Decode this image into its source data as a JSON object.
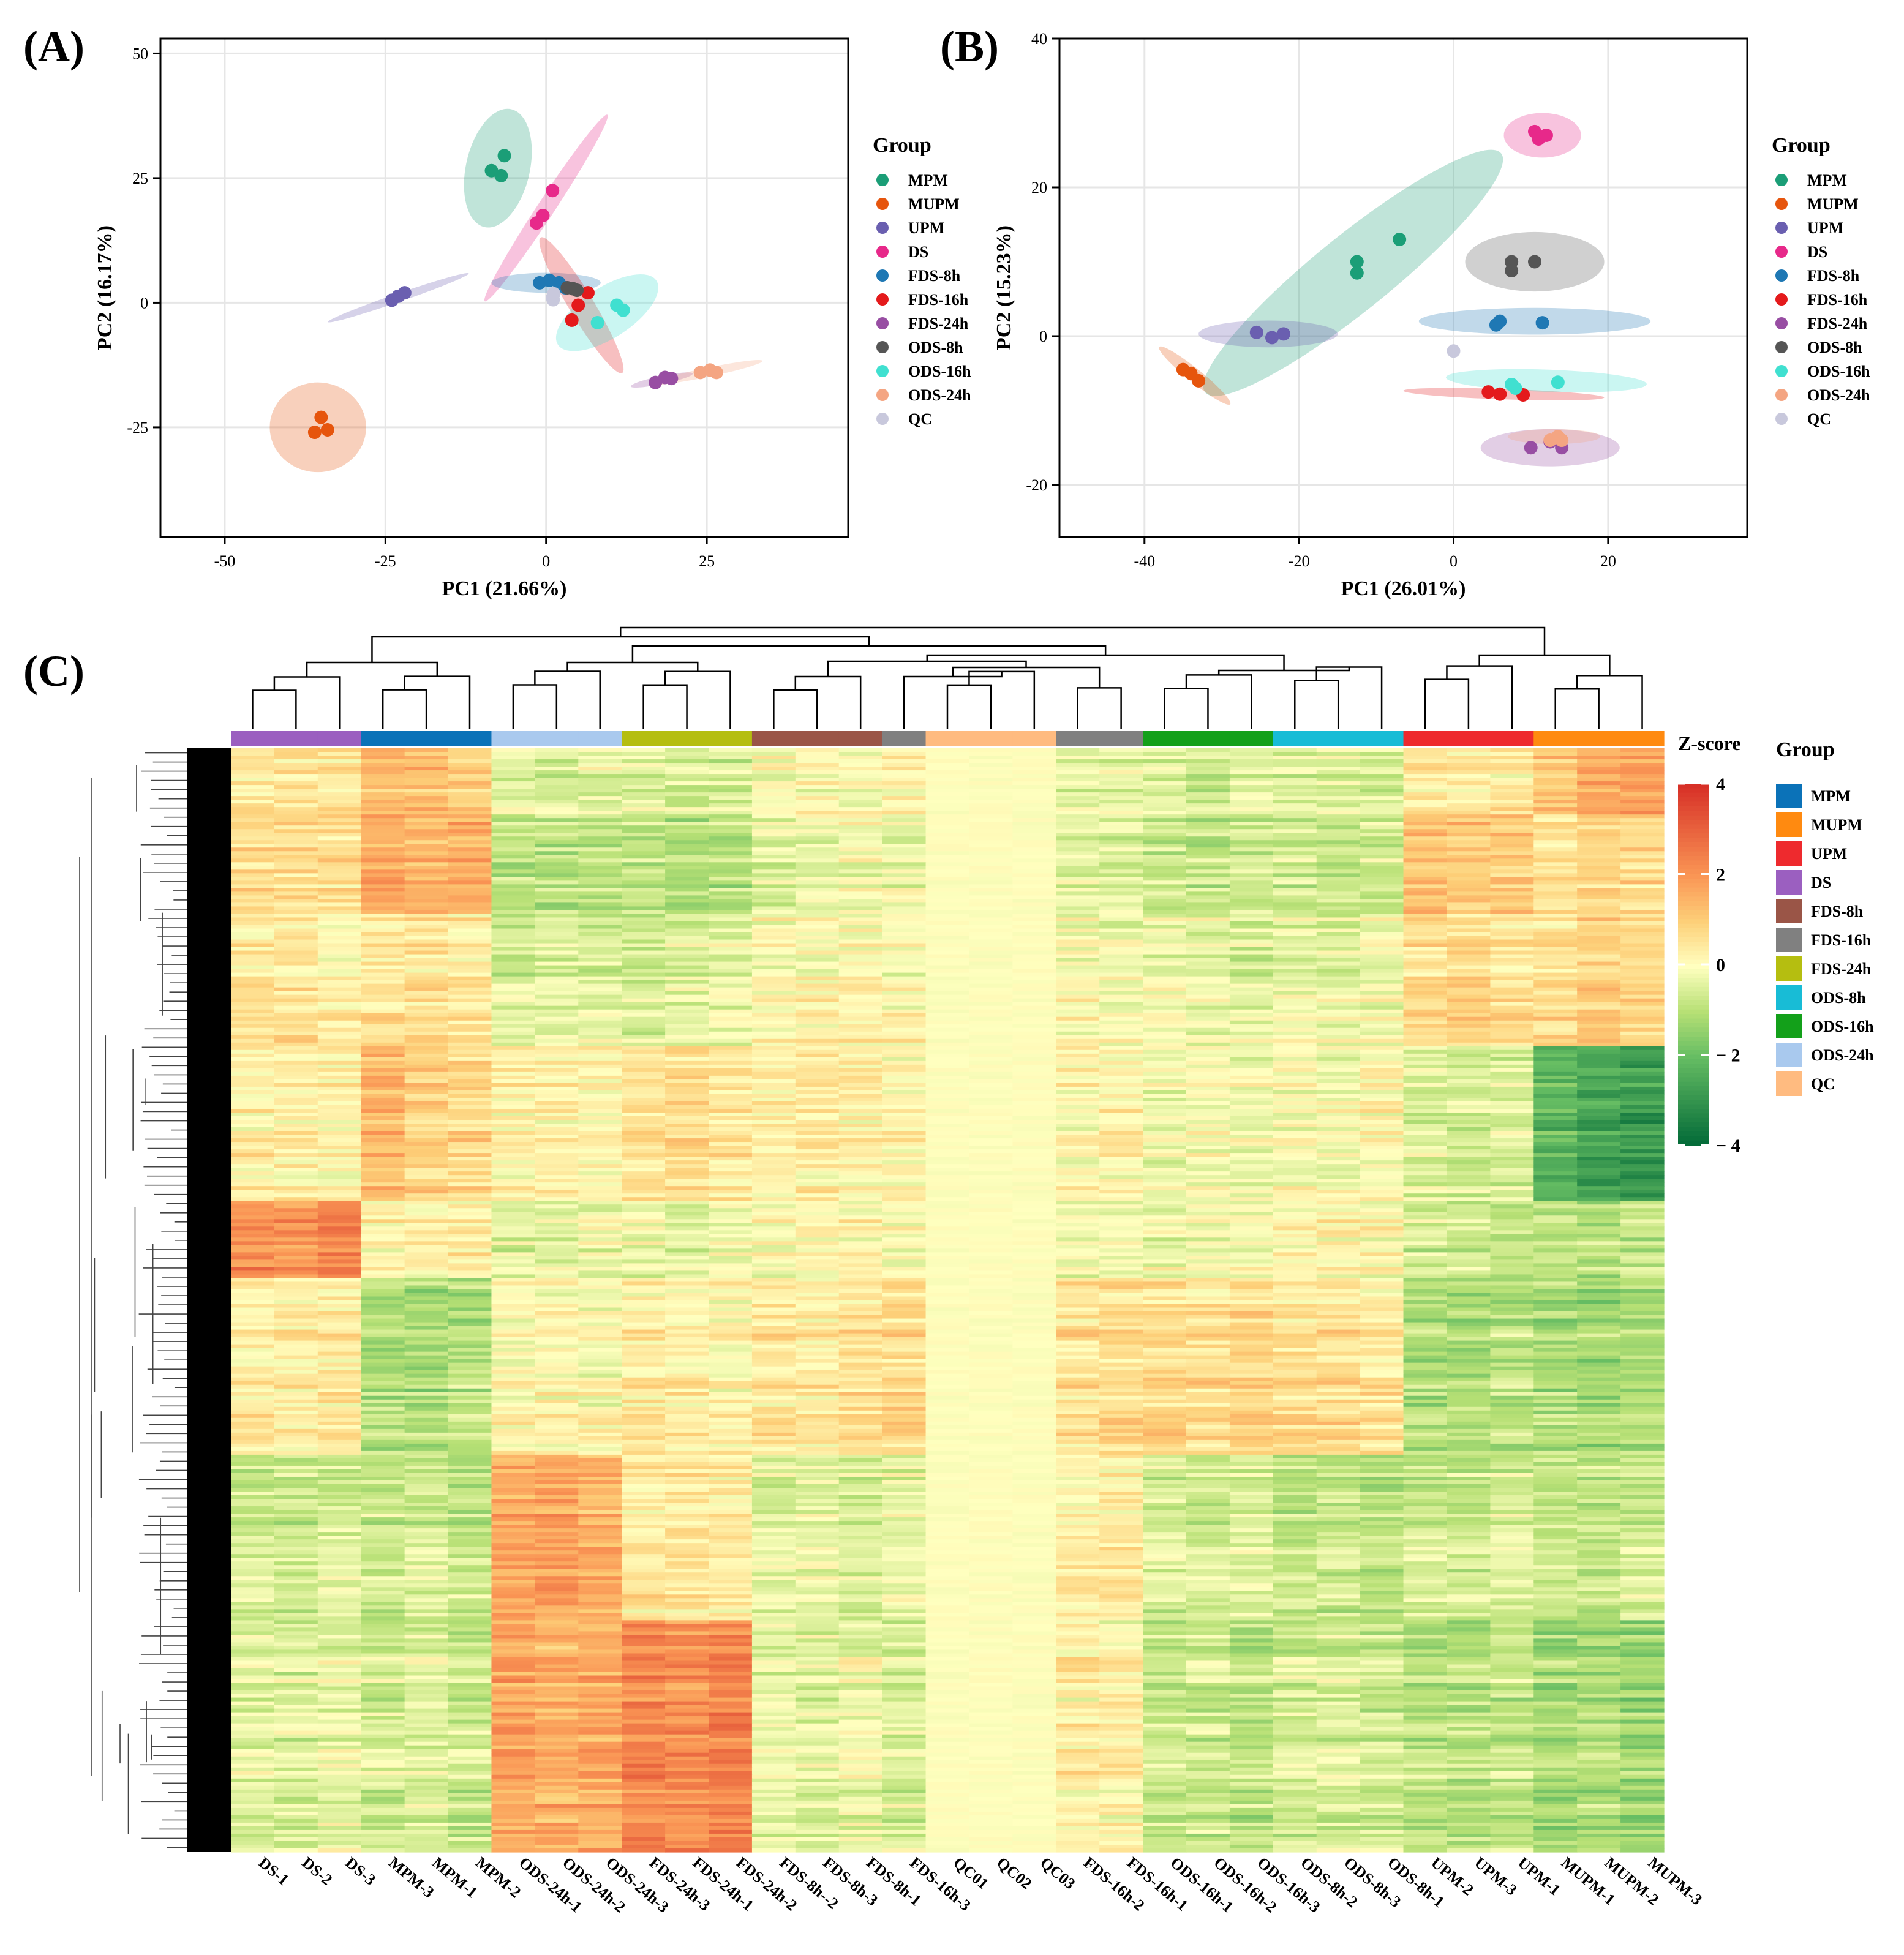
{
  "panels": {
    "a_label": "(A)",
    "b_label": "(B)",
    "c_label": "(C)"
  },
  "colors": {
    "MPM": "#1b9e77",
    "MUPM": "#e6550d",
    "UPM": "#6a5fb0",
    "DS": "#e7298a",
    "FDS-8h": "#1f78b4",
    "FDS-16h": "#e41a1c",
    "FDS-24h": "#984ea3",
    "ODS-8h": "#555555",
    "ODS-16h": "#40e0d0",
    "ODS-24h": "#f4a582",
    "QC": "#c8c8dc"
  },
  "chart_data": [
    {
      "type": "scatter",
      "panel": "A",
      "xlabel": "PC1 (21.66%)",
      "ylabel": "PC2 (16.17%)",
      "xlim": [
        -60,
        47
      ],
      "ylim": [
        -47,
        53
      ],
      "xticks": [
        -50,
        -25,
        0,
        25
      ],
      "yticks": [
        -25,
        0,
        25,
        50
      ],
      "legend_title": "Group",
      "legend_position": "right",
      "grid": true,
      "series": [
        {
          "name": "MPM",
          "points": [
            [
              -8.5,
              26.5
            ],
            [
              -6.5,
              29.5
            ],
            [
              -7,
              25.5
            ]
          ],
          "ellipse": {
            "cx": -7.5,
            "cy": 27,
            "rx": 12,
            "ry": 5,
            "angle": 80
          }
        },
        {
          "name": "MUPM",
          "points": [
            [
              -36,
              -26
            ],
            [
              -35,
              -23
            ],
            [
              -34,
              -25.5
            ]
          ],
          "ellipse": {
            "cx": -35.5,
            "cy": -25,
            "rx": 7.5,
            "ry": 9,
            "angle": 0
          }
        },
        {
          "name": "UPM",
          "points": [
            [
              -24,
              0.5
            ],
            [
              -23,
              1.3
            ],
            [
              -22,
              2
            ]
          ],
          "ellipse": {
            "cx": -23,
            "cy": 1,
            "rx": 12,
            "ry": 0.8,
            "angle": 24
          }
        },
        {
          "name": "DS",
          "points": [
            [
              -1.5,
              16
            ],
            [
              -0.5,
              17.5
            ],
            [
              1,
              22.5
            ]
          ],
          "ellipse": {
            "cx": 0,
            "cy": 19,
            "rx": 21,
            "ry": 1.4,
            "angle": 63
          }
        },
        {
          "name": "FDS-8h",
          "points": [
            [
              -1,
              4
            ],
            [
              0.5,
              4.5
            ],
            [
              2,
              4
            ],
            [
              3,
              3
            ]
          ],
          "ellipse": {
            "cx": 0,
            "cy": 4,
            "rx": 8.5,
            "ry": 2,
            "angle": 0
          }
        },
        {
          "name": "FDS-16h",
          "points": [
            [
              4,
              -3.5
            ],
            [
              5,
              -0.5
            ],
            [
              6.5,
              2
            ]
          ],
          "ellipse": {
            "cx": 5.5,
            "cy": -0.5,
            "rx": 15,
            "ry": 2,
            "angle": -65
          }
        },
        {
          "name": "FDS-24h",
          "points": [
            [
              17,
              -16
            ],
            [
              18.5,
              -15
            ],
            [
              19.5,
              -15.2
            ]
          ],
          "ellipse": {
            "cx": 18,
            "cy": -15.5,
            "rx": 5,
            "ry": 0.8,
            "angle": 15
          }
        },
        {
          "name": "ODS-8h",
          "points": [
            [
              3.3,
              3
            ],
            [
              4.2,
              2.8
            ],
            [
              4.8,
              2.5
            ]
          ],
          "ellipse": null
        },
        {
          "name": "ODS-16h",
          "points": [
            [
              8,
              -4
            ],
            [
              11,
              -0.5
            ],
            [
              12,
              -1.5
            ]
          ],
          "ellipse": {
            "cx": 9.5,
            "cy": -2,
            "rx": 10,
            "ry": 4.5,
            "angle": 40
          }
        },
        {
          "name": "ODS-24h",
          "points": [
            [
              24,
              -14
            ],
            [
              25.5,
              -13.5
            ],
            [
              26.5,
              -14
            ]
          ],
          "ellipse": {
            "cx": 25,
            "cy": -14,
            "rx": 9,
            "ry": 0.9,
            "angle": 15
          }
        },
        {
          "name": "QC",
          "points": [
            [
              1,
              1
            ],
            [
              1.2,
              1.8
            ],
            [
              1.1,
              0.6
            ]
          ],
          "ellipse": null
        }
      ]
    },
    {
      "type": "scatter",
      "panel": "B",
      "xlabel": "PC1 (26.01%)",
      "ylabel": "PC2 (15.23%)",
      "xlim": [
        -51,
        38
      ],
      "ylim": [
        -27,
        40
      ],
      "xticks": [
        -40,
        -20,
        0,
        20
      ],
      "yticks": [
        -20,
        0,
        20,
        40
      ],
      "legend_title": "Group",
      "legend_position": "right",
      "grid": true,
      "series": [
        {
          "name": "MPM",
          "points": [
            [
              -12.5,
              10
            ],
            [
              -12.5,
              8.5
            ],
            [
              -7,
              13
            ]
          ],
          "ellipse": {
            "cx": -13,
            "cy": 8.5,
            "rx": 25,
            "ry": 5,
            "angle": 40
          }
        },
        {
          "name": "MUPM",
          "points": [
            [
              -35,
              -4.5
            ],
            [
              -34,
              -5
            ],
            [
              -33,
              -6
            ]
          ],
          "ellipse": {
            "cx": -33.5,
            "cy": -5.3,
            "rx": 6,
            "ry": 0.9,
            "angle": -40
          }
        },
        {
          "name": "UPM",
          "points": [
            [
              -25.5,
              0.5
            ],
            [
              -23.5,
              -0.2
            ],
            [
              -22,
              0.3
            ]
          ],
          "ellipse": {
            "cx": -24,
            "cy": 0.3,
            "rx": 9,
            "ry": 1.8,
            "angle": 0
          }
        },
        {
          "name": "DS",
          "points": [
            [
              10.5,
              27.5
            ],
            [
              11,
              26.5
            ],
            [
              12,
              27
            ]
          ],
          "ellipse": {
            "cx": 11.5,
            "cy": 27,
            "rx": 5,
            "ry": 3,
            "angle": 0
          }
        },
        {
          "name": "FDS-8h",
          "points": [
            [
              5.5,
              1.5
            ],
            [
              6,
              2
            ],
            [
              11.5,
              1.8
            ]
          ],
          "ellipse": {
            "cx": 10.5,
            "cy": 2,
            "rx": 15,
            "ry": 1.8,
            "angle": 0
          }
        },
        {
          "name": "FDS-16h",
          "points": [
            [
              4.5,
              -7.5
            ],
            [
              6,
              -7.8
            ],
            [
              9,
              -7.9
            ]
          ],
          "ellipse": {
            "cx": 6.5,
            "cy": -7.8,
            "rx": 13,
            "ry": 0.7,
            "angle": -2
          }
        },
        {
          "name": "FDS-24h",
          "points": [
            [
              10,
              -15
            ],
            [
              12.5,
              -14.2
            ],
            [
              14,
              -15
            ]
          ],
          "ellipse": {
            "cx": 12.5,
            "cy": -15,
            "rx": 9,
            "ry": 2.5,
            "angle": 0
          }
        },
        {
          "name": "ODS-8h",
          "points": [
            [
              7.5,
              10
            ],
            [
              7.5,
              8.8
            ],
            [
              10.5,
              10
            ]
          ],
          "ellipse": {
            "cx": 10.5,
            "cy": 10,
            "rx": 9,
            "ry": 4,
            "angle": 0
          }
        },
        {
          "name": "ODS-16h",
          "points": [
            [
              7.5,
              -6.5
            ],
            [
              8,
              -7
            ],
            [
              13.5,
              -6.2
            ]
          ],
          "ellipse": {
            "cx": 12,
            "cy": -6,
            "rx": 13,
            "ry": 1.5,
            "angle": -2
          }
        },
        {
          "name": "ODS-24h",
          "points": [
            [
              12.5,
              -14
            ],
            [
              13.5,
              -13.5
            ],
            [
              14,
              -14
            ]
          ],
          "ellipse": {
            "cx": 13,
            "cy": -13.5,
            "rx": 6,
            "ry": 1,
            "angle": 0
          }
        },
        {
          "name": "QC",
          "points": [
            [
              0,
              -2
            ]
          ],
          "ellipse": null
        }
      ]
    },
    {
      "type": "heatmap",
      "panel": "C",
      "colorbar_title": "Z-score",
      "colorbar_ticks": [
        4,
        2,
        0,
        -2,
        -4
      ],
      "colorbar_range": [
        -4,
        4
      ],
      "legend_title": "Group",
      "legend_position": "right",
      "legend_groups": [
        "MPM",
        "MUPM",
        "UPM",
        "DS",
        "FDS-8h",
        "FDS-16h",
        "FDS-24h",
        "ODS-8h",
        "ODS-16h",
        "ODS-24h",
        "QC"
      ],
      "group_colors": {
        "MPM": "#0b72b8",
        "MUPM": "#ff8a10",
        "UPM": "#ee2a2e",
        "DS": "#9b5fc0",
        "FDS-8h": "#9a5547",
        "FDS-16h": "#808080",
        "FDS-24h": "#b5be10",
        "ODS-8h": "#18bcd6",
        "ODS-16h": "#13a01a",
        "ODS-24h": "#a9c9ee",
        "QC": "#ffbb80"
      },
      "samples": [
        {
          "label": "DS-1",
          "group": "DS"
        },
        {
          "label": "DS-2",
          "group": "DS"
        },
        {
          "label": "DS-3",
          "group": "DS"
        },
        {
          "label": "MPM-3",
          "group": "MPM"
        },
        {
          "label": "MPM-1",
          "group": "MPM"
        },
        {
          "label": "MPM-2",
          "group": "MPM"
        },
        {
          "label": "ODS-24h-1",
          "group": "ODS-24h"
        },
        {
          "label": "ODS-24h-2",
          "group": "ODS-24h"
        },
        {
          "label": "ODS-24h-3",
          "group": "ODS-24h"
        },
        {
          "label": "FDS-24h-3",
          "group": "FDS-24h"
        },
        {
          "label": "FDS-24h-1",
          "group": "FDS-24h"
        },
        {
          "label": "FDS-24h-2",
          "group": "FDS-24h"
        },
        {
          "label": "FDS-8h--2",
          "group": "FDS-8h"
        },
        {
          "label": "FDS-8h-3",
          "group": "FDS-8h"
        },
        {
          "label": "FDS-8h-1",
          "group": "FDS-8h"
        },
        {
          "label": "FDS-16h-3",
          "group": "FDS-16h"
        },
        {
          "label": "QC01",
          "group": "QC"
        },
        {
          "label": "QC02",
          "group": "QC"
        },
        {
          "label": "QC03",
          "group": "QC"
        },
        {
          "label": "FDS-16h-2",
          "group": "FDS-16h"
        },
        {
          "label": "FDS-16h-1",
          "group": "FDS-16h"
        },
        {
          "label": "ODS-16h-1",
          "group": "ODS-16h"
        },
        {
          "label": "ODS-16h-2",
          "group": "ODS-16h"
        },
        {
          "label": "ODS-16h-3",
          "group": "ODS-16h"
        },
        {
          "label": "ODS-8h-2",
          "group": "ODS-8h"
        },
        {
          "label": "ODS-8h-3",
          "group": "ODS-8h"
        },
        {
          "label": "ODS-8h-1",
          "group": "ODS-8h"
        },
        {
          "label": "UPM-2",
          "group": "UPM"
        },
        {
          "label": "UPM-3",
          "group": "UPM"
        },
        {
          "label": "UPM-1",
          "group": "UPM"
        },
        {
          "label": "MUPM-1",
          "group": "MUPM"
        },
        {
          "label": "MUPM-2",
          "group": "MUPM"
        },
        {
          "label": "MUPM-3",
          "group": "MUPM"
        }
      ],
      "row_blocks": [
        {
          "rows": [
            0,
            0.06
          ],
          "mean": [
            0.5,
            0.6,
            0.4,
            1.4,
            1.2,
            1.0,
            -0.4,
            -0.5,
            -0.3,
            -0.4,
            -0.6,
            -0.5,
            0.0,
            0.1,
            0.0,
            0.2,
            0.0,
            0.0,
            0.0,
            -0.3,
            -0.2,
            -0.5,
            -0.6,
            -0.3,
            -0.4,
            -0.4,
            -0.5,
            0.5,
            0.4,
            0.4,
            1.2,
            1.6,
            1.8
          ]
        },
        {
          "rows": [
            0.06,
            0.15
          ],
          "mean": [
            0.8,
            0.8,
            0.7,
            1.6,
            1.4,
            1.5,
            -0.8,
            -0.9,
            -0.8,
            -0.9,
            -1.0,
            -0.9,
            -0.3,
            -0.2,
            -0.1,
            -0.2,
            0.0,
            0.0,
            0.0,
            -0.3,
            -0.4,
            -0.7,
            -0.8,
            -0.6,
            -0.6,
            -0.7,
            -0.6,
            1.3,
            1.2,
            1.1,
            0.6,
            0.9,
            0.8
          ]
        },
        {
          "rows": [
            0.15,
            0.27
          ],
          "mean": [
            0.4,
            0.5,
            0.3,
            0.6,
            0.5,
            0.4,
            -0.5,
            -0.3,
            -0.4,
            -0.6,
            -0.4,
            -0.3,
            0.0,
            0.1,
            0.2,
            0.1,
            0.0,
            0.0,
            0.0,
            0.0,
            -0.1,
            -0.2,
            -0.3,
            -0.4,
            -0.2,
            -0.3,
            -0.2,
            0.7,
            0.8,
            0.6,
            0.7,
            0.9,
            0.8
          ]
        },
        {
          "rows": [
            0.27,
            0.41
          ],
          "mean": [
            0.3,
            0.4,
            0.2,
            1.4,
            0.9,
            0.8,
            0.2,
            0.3,
            0.2,
            0.6,
            0.7,
            0.5,
            0.3,
            0.4,
            0.3,
            0.2,
            0.0,
            0.0,
            0.0,
            0.1,
            0.2,
            -0.2,
            -0.1,
            -0.2,
            0.0,
            -0.1,
            0.1,
            -0.5,
            -0.6,
            -0.5,
            -2.2,
            -2.6,
            -2.8
          ]
        },
        {
          "rows": [
            0.41,
            0.48
          ],
          "mean": [
            2.2,
            2.0,
            2.4,
            0.3,
            0.2,
            0.4,
            -0.4,
            -0.3,
            -0.2,
            -0.2,
            -0.3,
            -0.1,
            0.0,
            0.1,
            0.2,
            0.1,
            0.0,
            0.0,
            0.0,
            0.0,
            0.0,
            -0.2,
            -0.1,
            0.0,
            0.2,
            0.3,
            0.2,
            -0.6,
            -0.5,
            -0.7,
            -0.8,
            -0.9,
            -0.7
          ]
        },
        {
          "rows": [
            0.48,
            0.64
          ],
          "mean": [
            0.4,
            0.3,
            0.5,
            -1.0,
            -1.1,
            -0.9,
            0.1,
            0.2,
            0.0,
            0.4,
            0.3,
            0.2,
            0.5,
            0.4,
            0.6,
            0.8,
            0.0,
            0.0,
            0.0,
            0.6,
            0.7,
            0.8,
            0.7,
            0.9,
            0.6,
            0.7,
            0.5,
            -1.0,
            -1.1,
            -0.9,
            -1.1,
            -1.2,
            -1.0
          ]
        },
        {
          "rows": [
            0.64,
            0.79
          ],
          "mean": [
            -0.6,
            -0.7,
            -0.5,
            -0.7,
            -0.6,
            -0.8,
            1.6,
            1.8,
            1.5,
            0.4,
            0.5,
            0.3,
            -0.4,
            -0.3,
            -0.5,
            -0.2,
            0.0,
            0.0,
            0.0,
            0.3,
            0.4,
            -0.5,
            -0.6,
            -0.4,
            -0.8,
            -0.7,
            -0.9,
            -0.6,
            -0.7,
            -0.5,
            -0.7,
            -0.8,
            -0.6
          ]
        },
        {
          "rows": [
            0.79,
            1.0
          ],
          "mean": [
            -0.4,
            -0.5,
            -0.3,
            -0.6,
            -0.5,
            -0.7,
            1.7,
            1.5,
            1.6,
            2.3,
            2.1,
            2.4,
            -0.3,
            -0.4,
            -0.2,
            -0.5,
            0.0,
            0.0,
            0.0,
            0.3,
            0.2,
            -0.8,
            -0.7,
            -0.9,
            -0.6,
            -0.5,
            -0.7,
            -0.9,
            -1.0,
            -0.8,
            -1.2,
            -1.1,
            -1.3
          ]
        }
      ],
      "column_dendrogram": true,
      "row_dendrogram": true
    }
  ]
}
